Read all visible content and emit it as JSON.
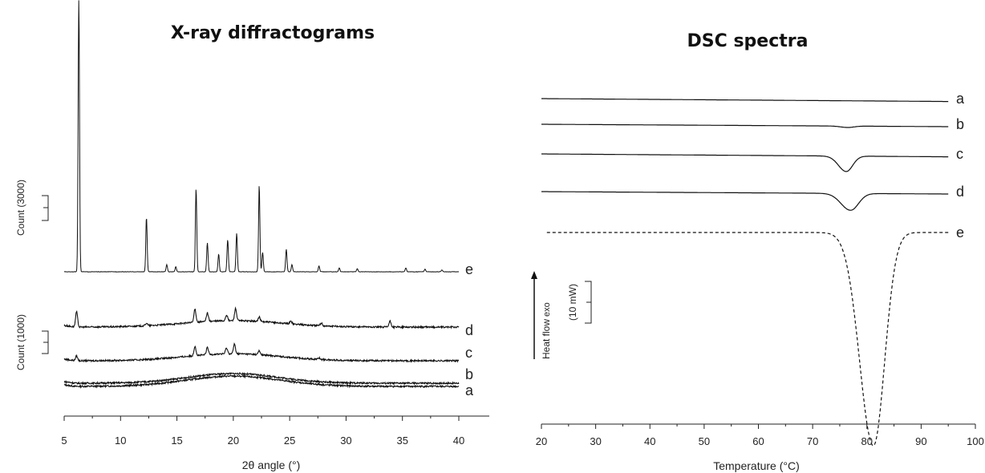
{
  "chart_data": [
    {
      "type": "line",
      "title": "X-ray diffractograms",
      "xlabel": "2θ angle (°)",
      "ylabel": "",
      "xlim": [
        5,
        40
      ],
      "xticks": [
        5,
        10,
        15,
        20,
        25,
        30,
        35,
        40
      ],
      "scale_bars": [
        "Count (3000)",
        "Count (1000)"
      ],
      "series": [
        {
          "name": "a",
          "halo": {
            "center": 20.0,
            "height": 0.32,
            "width": 4.2
          },
          "peaks": []
        },
        {
          "name": "b",
          "halo": {
            "center": 20.0,
            "height": 0.3,
            "width": 4.0
          },
          "peaks": []
        },
        {
          "name": "c",
          "halo": {
            "center": 20.0,
            "height": 0.22,
            "width": 4.2
          },
          "peaks": [
            [
              6.1,
              0.15
            ],
            [
              16.6,
              0.3
            ],
            [
              17.7,
              0.22
            ],
            [
              19.4,
              0.18
            ],
            [
              20.1,
              0.3
            ],
            [
              22.3,
              0.12
            ],
            [
              27.6,
              0.05
            ]
          ]
        },
        {
          "name": "d",
          "halo": {
            "center": 20.0,
            "height": 0.2,
            "width": 4.4
          },
          "peaks": [
            [
              6.1,
              0.48
            ],
            [
              12.3,
              0.08
            ],
            [
              16.6,
              0.42
            ],
            [
              17.7,
              0.27
            ],
            [
              19.4,
              0.18
            ],
            [
              20.2,
              0.38
            ],
            [
              22.3,
              0.14
            ],
            [
              25.1,
              0.08
            ],
            [
              27.8,
              0.08
            ],
            [
              33.9,
              0.18
            ]
          ]
        },
        {
          "name": "e",
          "halo": {
            "center": 20.0,
            "height": 0.0,
            "width": 4.0
          },
          "peaks": [
            [
              6.3,
              8.5
            ],
            [
              12.3,
              1.7
            ],
            [
              14.1,
              0.22
            ],
            [
              14.9,
              0.16
            ],
            [
              16.7,
              2.6
            ],
            [
              17.7,
              0.9
            ],
            [
              18.7,
              0.55
            ],
            [
              19.5,
              1.0
            ],
            [
              20.3,
              1.2
            ],
            [
              22.3,
              2.7
            ],
            [
              22.6,
              0.6
            ],
            [
              24.7,
              0.7
            ],
            [
              25.2,
              0.22
            ],
            [
              27.6,
              0.18
            ],
            [
              29.4,
              0.12
            ],
            [
              31.0,
              0.1
            ],
            [
              35.3,
              0.12
            ],
            [
              37.0,
              0.08
            ],
            [
              38.5,
              0.06
            ]
          ]
        }
      ]
    },
    {
      "type": "line",
      "title": "DSC spectra",
      "xlabel": "Temperature (°C)",
      "ylabel": "Heat flow",
      "ylabel_suffix": "exo",
      "xlim": [
        20,
        100
      ],
      "xticks": [
        20,
        30,
        40,
        50,
        60,
        70,
        80,
        90,
        100
      ],
      "scale_bar": "(10 mW)",
      "series": [
        {
          "name": "a",
          "style": "solid",
          "drift": 0.12,
          "peak": null
        },
        {
          "name": "b",
          "style": "solid",
          "drift": 0.1,
          "peak": {
            "t": 76.5,
            "depth": 0.05,
            "sigma": 1.2
          }
        },
        {
          "name": "c",
          "style": "solid",
          "drift": 0.12,
          "peak": {
            "t": 76.2,
            "depth": 0.55,
            "sigma": 1.3
          }
        },
        {
          "name": "d",
          "style": "solid",
          "drift": 0.1,
          "peak": {
            "t": 77.0,
            "depth": 0.6,
            "sigma": 1.6
          }
        },
        {
          "name": "e",
          "style": "dashed",
          "drift": 0.0,
          "peak": {
            "t": 81.2,
            "depth": 7.6,
            "sigma": 2.3
          }
        }
      ]
    }
  ]
}
